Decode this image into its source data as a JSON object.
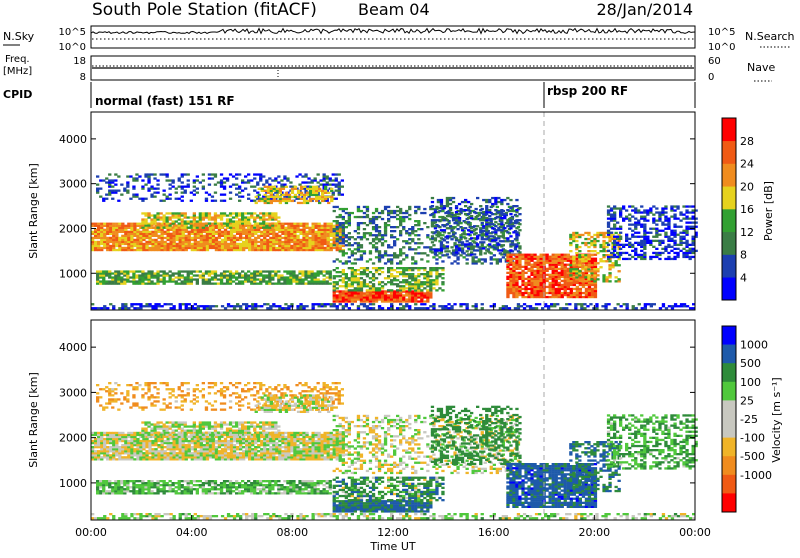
{
  "header": {
    "station": "South Pole Station (fitACF)",
    "beam": "Beam 04",
    "date": "28/Jan/2014"
  },
  "panels": {
    "nsky": {
      "label": "N.Sky",
      "left_ticks": [
        "10^5",
        "10^0"
      ],
      "right_ticks": [
        "10^5",
        "10^0"
      ],
      "right_label": "N.Search"
    },
    "freq": {
      "label_line1": "Freq.",
      "label_line2": "[MHz]",
      "left_ticks": [
        "18",
        "8"
      ],
      "right_ticks": [
        "60",
        "0"
      ],
      "right_label": "Nave"
    },
    "cpid": {
      "label": "CPID",
      "modes": [
        "normal (fast) 151 RF",
        "rbsp 200 RF"
      ],
      "mode_start_hours": [
        0,
        18
      ]
    }
  },
  "colors": {
    "power": [
      "#0000ff",
      "#1c3fb0",
      "#3a7d45",
      "#32a032",
      "#e6d21e",
      "#f08c1e",
      "#f05a14",
      "#ff0000"
    ],
    "velocity": [
      "#ff0000",
      "#f05a14",
      "#f08c1e",
      "#f0b428",
      "#c8c8c0",
      "#c8c8c0",
      "#50c83c",
      "#2e8b3a",
      "#1e5aaa",
      "#0000ff"
    ],
    "grey_scatter": "#c8c8c0"
  },
  "chart_data": [
    {
      "type": "heatmap",
      "name": "power",
      "ylabel": "Slant Range [km]",
      "yticks": [
        "1000",
        "2000",
        "3000",
        "4000"
      ],
      "ylim": [
        180,
        4600
      ],
      "xlim": [
        0,
        24
      ],
      "colorbar": {
        "label": "Power [dB]",
        "ticks": [
          "4",
          "8",
          "12",
          "16",
          "20",
          "24",
          "28"
        ],
        "range": [
          0,
          32
        ]
      }
    },
    {
      "type": "heatmap",
      "name": "velocity",
      "ylabel": "Slant Range [km]",
      "yticks": [
        "1000",
        "2000",
        "3000",
        "4000"
      ],
      "ylim": [
        180,
        4600
      ],
      "xlim": [
        0,
        24
      ],
      "xlabel": "Time UT",
      "xticks": [
        "00:00",
        "04:00",
        "08:00",
        "12:00",
        "16:00",
        "20:00",
        "00:00"
      ],
      "colorbar": {
        "label": "Velocity [m s⁻¹]",
        "ticks": [
          "1000",
          "500",
          "100",
          "25",
          "-25",
          "-100",
          "-500",
          "-1000"
        ]
      }
    }
  ],
  "scatter_regions": [
    {
      "t0": 0.0,
      "t1": 10.0,
      "r0": 1500,
      "r1": 2100,
      "p": 22,
      "v": 0,
      "d": 0.9
    },
    {
      "t0": 2.0,
      "t1": 7.5,
      "r0": 2000,
      "r1": 2350,
      "p": 18,
      "v": 0,
      "d": 0.7
    },
    {
      "t0": 0.2,
      "t1": 9.5,
      "r0": 750,
      "r1": 1050,
      "p": 13,
      "v": 80,
      "d": 0.8
    },
    {
      "t0": 9.6,
      "t1": 13.5,
      "r0": 350,
      "r1": 600,
      "p": 27,
      "v": 600,
      "d": 0.95
    },
    {
      "t0": 9.6,
      "t1": 14.0,
      "r0": 600,
      "r1": 1100,
      "p": 14,
      "v": 300,
      "d": 0.6
    },
    {
      "t0": 9.6,
      "t1": 17.0,
      "r0": 1200,
      "r1": 2500,
      "p": 9,
      "v": 0,
      "d": 0.35
    },
    {
      "t0": 13.5,
      "t1": 17.0,
      "r0": 1400,
      "r1": 2700,
      "p": 7,
      "v": 200,
      "d": 0.4
    },
    {
      "t0": 16.5,
      "t1": 20.0,
      "r0": 450,
      "r1": 1400,
      "p": 26,
      "v": 700,
      "d": 0.85
    },
    {
      "t0": 19.0,
      "t1": 21.0,
      "r0": 800,
      "r1": 1900,
      "p": 18,
      "v": 500,
      "d": 0.5
    },
    {
      "t0": 20.5,
      "t1": 24.0,
      "r0": 1300,
      "r1": 2500,
      "p": 5,
      "v": 100,
      "d": 0.45
    },
    {
      "t0": 0.2,
      "t1": 10.0,
      "r0": 2600,
      "r1": 3200,
      "p": 6,
      "v": -100,
      "d": 0.3
    },
    {
      "t0": 6.5,
      "t1": 9.5,
      "r0": 2550,
      "r1": 2950,
      "p": 19,
      "v": 0,
      "d": 0.6
    },
    {
      "t0": 0.0,
      "t1": 24.0,
      "r0": 200,
      "r1": 330,
      "p": 5,
      "v": 30,
      "d": 0.5
    }
  ]
}
